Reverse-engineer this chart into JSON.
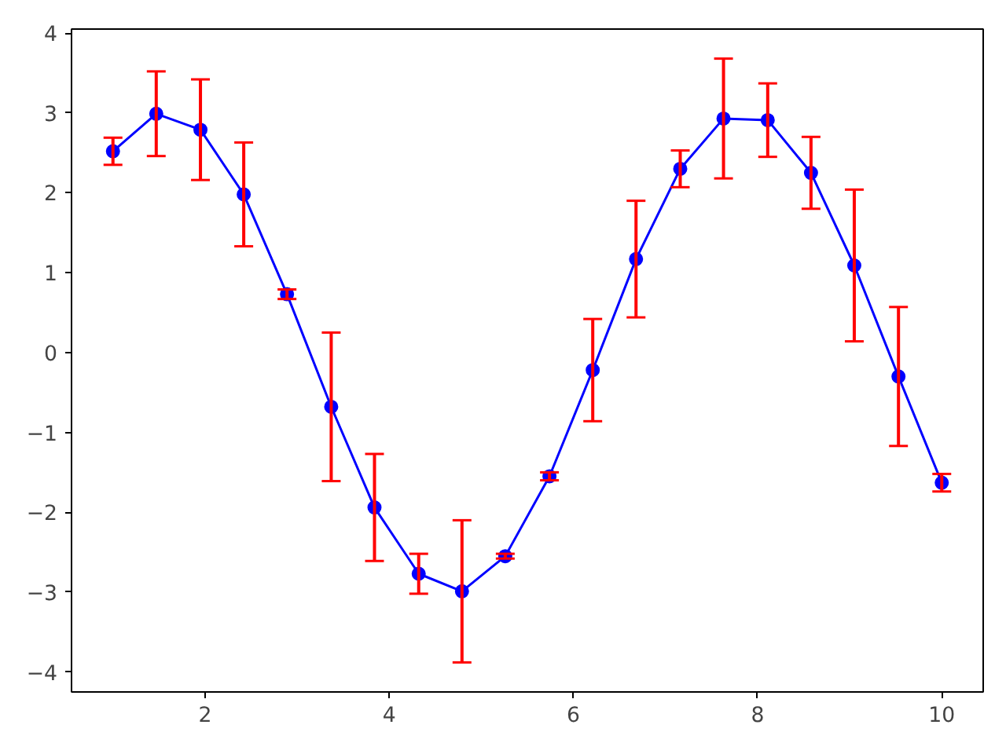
{
  "chart_data": {
    "type": "line",
    "marker": "circle",
    "line_style": "solid",
    "grid": false,
    "x": [
      1.0,
      1.47,
      1.95,
      2.42,
      2.89,
      3.37,
      3.84,
      4.32,
      4.79,
      5.26,
      5.74,
      6.21,
      6.68,
      7.16,
      7.63,
      8.11,
      8.58,
      9.05,
      9.53,
      10.0
    ],
    "series": [
      {
        "color": "#0000ff",
        "values": [
          2.52,
          2.99,
          2.79,
          1.98,
          0.73,
          -0.68,
          -1.94,
          -2.77,
          -2.99,
          -2.55,
          -1.55,
          -0.22,
          1.17,
          2.3,
          2.93,
          2.91,
          2.25,
          1.09,
          -0.3,
          -1.63
        ],
        "errors": [
          0.17,
          0.53,
          0.63,
          0.65,
          0.06,
          0.93,
          0.67,
          0.25,
          0.89,
          0.03,
          0.05,
          0.64,
          0.73,
          0.23,
          0.75,
          0.46,
          0.45,
          0.95,
          0.87,
          0.11
        ]
      }
    ],
    "xlim": [
      0.55,
      10.45
    ],
    "ylim": [
      -4.25,
      4.05
    ],
    "xticks": [
      2,
      4,
      6,
      8,
      10
    ],
    "yticks": [
      {
        "value": -4,
        "label": "−4"
      },
      {
        "value": -3,
        "label": "−3"
      },
      {
        "value": -2,
        "label": "−2"
      },
      {
        "value": -1,
        "label": "−1"
      },
      0,
      1,
      2,
      3,
      4
    ]
  }
}
